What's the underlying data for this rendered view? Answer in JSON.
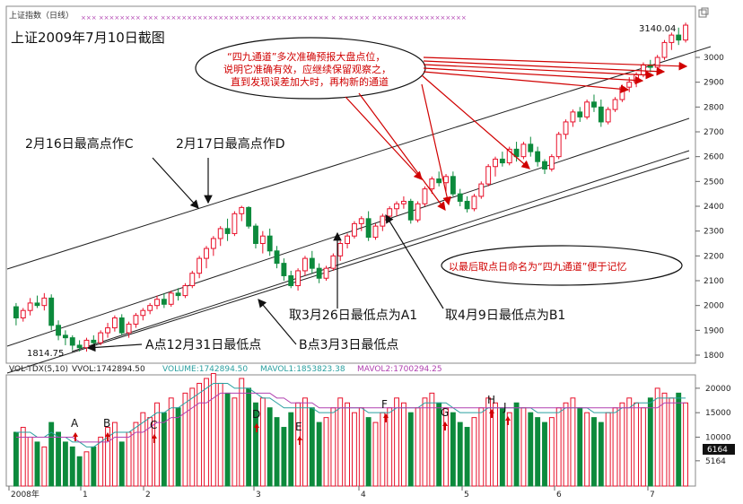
{
  "header": {
    "panel_label": "上证指数（日线）",
    "title": "上证2009年7月10日截图",
    "minimize_icon": "window-restore-icon"
  },
  "price_axis": {
    "ticks": [
      1800,
      1900,
      2000,
      2100,
      2200,
      2300,
      2400,
      2500,
      2600,
      2700,
      2800,
      2900,
      3000
    ],
    "high_label": "3140.04",
    "low_label": "1814.75"
  },
  "annotations": {
    "note_box": [
      "“四九通道”多次准确预报大盘点位，",
      "说明它准确有效，应继续保留观察之，",
      "直到发现误差加大时，再构新的通道"
    ],
    "label_c": "2月16日最高点作C",
    "label_d": "2月17日最高点作D",
    "label_a": "A点12月31日最低点",
    "label_b": "B点3月3日最低点",
    "label_a1": "取3月26日最低点为A1",
    "label_b1": "取4月9日最低点为B1",
    "name_note": "以最后取点日命名为“四九通道”便于记忆"
  },
  "volume_header": {
    "indicator": "VOL-TDX(5,10)",
    "vvol": "VVOL:1742894.50",
    "volume": "VOLUME:1742894.50",
    "mavol1": "MAVOL1:1853823.38",
    "mavol2": "MAVOL2:1700294.25"
  },
  "volume_axis": {
    "ticks": [
      "20000",
      "15000",
      "10000",
      "5164"
    ],
    "current_label": "6164"
  },
  "volume_markers": [
    "A",
    "B",
    "C",
    "D",
    "E",
    "F",
    "G",
    "H",
    "J"
  ],
  "time_axis": [
    "2008年",
    "1",
    "2",
    "3",
    "4",
    "5",
    "6",
    "7"
  ],
  "colors": {
    "up": "#e8102a",
    "down": "#0c8a3c",
    "channel": "#222222",
    "ma1": "#2aa0a0",
    "ma2": "#b040b0",
    "note_text": "#d00000",
    "arrow": "#d00000"
  },
  "chart_data": {
    "type": "candlestick",
    "title": "上证2009年7月10日截图",
    "ylim": [
      1760,
      3200
    ],
    "channel_lines_note": "四九通道",
    "key_points": {
      "high": 3140.04,
      "low": 1814.75
    },
    "candles": [
      {
        "o": 1995,
        "h": 2010,
        "l": 1920,
        "c": 1950
      },
      {
        "o": 1950,
        "h": 1990,
        "l": 1935,
        "c": 1980
      },
      {
        "o": 1980,
        "h": 2030,
        "l": 1960,
        "c": 2010
      },
      {
        "o": 2010,
        "h": 2040,
        "l": 1990,
        "c": 2000
      },
      {
        "o": 2000,
        "h": 2050,
        "l": 1980,
        "c": 2030
      },
      {
        "o": 2030,
        "h": 2045,
        "l": 1900,
        "c": 1920
      },
      {
        "o": 1920,
        "h": 1940,
        "l": 1860,
        "c": 1880
      },
      {
        "o": 1880,
        "h": 1900,
        "l": 1840,
        "c": 1870
      },
      {
        "o": 1870,
        "h": 1880,
        "l": 1820,
        "c": 1840
      },
      {
        "o": 1840,
        "h": 1860,
        "l": 1815,
        "c": 1830
      },
      {
        "o": 1830,
        "h": 1870,
        "l": 1814,
        "c": 1860
      },
      {
        "o": 1860,
        "h": 1880,
        "l": 1830,
        "c": 1850
      },
      {
        "o": 1850,
        "h": 1900,
        "l": 1840,
        "c": 1890
      },
      {
        "o": 1890,
        "h": 1930,
        "l": 1870,
        "c": 1910
      },
      {
        "o": 1910,
        "h": 1960,
        "l": 1895,
        "c": 1950
      },
      {
        "o": 1950,
        "h": 1965,
        "l": 1880,
        "c": 1890
      },
      {
        "o": 1890,
        "h": 1935,
        "l": 1870,
        "c": 1925
      },
      {
        "o": 1925,
        "h": 1970,
        "l": 1910,
        "c": 1960
      },
      {
        "o": 1960,
        "h": 1990,
        "l": 1940,
        "c": 1980
      },
      {
        "o": 1980,
        "h": 2010,
        "l": 1965,
        "c": 2000
      },
      {
        "o": 2000,
        "h": 2040,
        "l": 1985,
        "c": 2025
      },
      {
        "o": 2025,
        "h": 2050,
        "l": 1990,
        "c": 2005
      },
      {
        "o": 2005,
        "h": 2060,
        "l": 1995,
        "c": 2050
      },
      {
        "o": 2050,
        "h": 2070,
        "l": 2020,
        "c": 2040
      },
      {
        "o": 2040,
        "h": 2090,
        "l": 2030,
        "c": 2080
      },
      {
        "o": 2080,
        "h": 2140,
        "l": 2070,
        "c": 2130
      },
      {
        "o": 2130,
        "h": 2200,
        "l": 2110,
        "c": 2190
      },
      {
        "o": 2190,
        "h": 2240,
        "l": 2150,
        "c": 2230
      },
      {
        "o": 2230,
        "h": 2280,
        "l": 2200,
        "c": 2270
      },
      {
        "o": 2270,
        "h": 2320,
        "l": 2240,
        "c": 2310
      },
      {
        "o": 2310,
        "h": 2350,
        "l": 2260,
        "c": 2290
      },
      {
        "o": 2290,
        "h": 2380,
        "l": 2280,
        "c": 2370
      },
      {
        "o": 2370,
        "h": 2402,
        "l": 2340,
        "c": 2395
      },
      {
        "o": 2395,
        "h": 2400,
        "l": 2310,
        "c": 2320
      },
      {
        "o": 2320,
        "h": 2330,
        "l": 2230,
        "c": 2250
      },
      {
        "o": 2250,
        "h": 2300,
        "l": 2210,
        "c": 2280
      },
      {
        "o": 2280,
        "h": 2310,
        "l": 2200,
        "c": 2220
      },
      {
        "o": 2220,
        "h": 2240,
        "l": 2150,
        "c": 2170
      },
      {
        "o": 2170,
        "h": 2190,
        "l": 2100,
        "c": 2120
      },
      {
        "o": 2120,
        "h": 2140,
        "l": 2070,
        "c": 2080
      },
      {
        "o": 2080,
        "h": 2150,
        "l": 2060,
        "c": 2140
      },
      {
        "o": 2140,
        "h": 2200,
        "l": 2120,
        "c": 2190
      },
      {
        "o": 2190,
        "h": 2220,
        "l": 2130,
        "c": 2150
      },
      {
        "o": 2150,
        "h": 2170,
        "l": 2090,
        "c": 2110
      },
      {
        "o": 2110,
        "h": 2160,
        "l": 2100,
        "c": 2150
      },
      {
        "o": 2150,
        "h": 2210,
        "l": 2140,
        "c": 2200
      },
      {
        "o": 2200,
        "h": 2260,
        "l": 2180,
        "c": 2250
      },
      {
        "o": 2250,
        "h": 2290,
        "l": 2230,
        "c": 2280
      },
      {
        "o": 2280,
        "h": 2340,
        "l": 2270,
        "c": 2330
      },
      {
        "o": 2330,
        "h": 2360,
        "l": 2300,
        "c": 2350
      },
      {
        "o": 2350,
        "h": 2380,
        "l": 2260,
        "c": 2275
      },
      {
        "o": 2275,
        "h": 2330,
        "l": 2265,
        "c": 2320
      },
      {
        "o": 2320,
        "h": 2370,
        "l": 2300,
        "c": 2360
      },
      {
        "o": 2360,
        "h": 2400,
        "l": 2340,
        "c": 2390
      },
      {
        "o": 2390,
        "h": 2420,
        "l": 2360,
        "c": 2410
      },
      {
        "o": 2410,
        "h": 2440,
        "l": 2390,
        "c": 2420
      },
      {
        "o": 2420,
        "h": 2430,
        "l": 2330,
        "c": 2345
      },
      {
        "o": 2345,
        "h": 2420,
        "l": 2335,
        "c": 2410
      },
      {
        "o": 2410,
        "h": 2480,
        "l": 2400,
        "c": 2470
      },
      {
        "o": 2470,
        "h": 2520,
        "l": 2450,
        "c": 2510
      },
      {
        "o": 2510,
        "h": 2540,
        "l": 2480,
        "c": 2495
      },
      {
        "o": 2495,
        "h": 2530,
        "l": 2460,
        "c": 2520
      },
      {
        "o": 2520,
        "h": 2540,
        "l": 2440,
        "c": 2450
      },
      {
        "o": 2450,
        "h": 2470,
        "l": 2400,
        "c": 2420
      },
      {
        "o": 2420,
        "h": 2440,
        "l": 2375,
        "c": 2390
      },
      {
        "o": 2390,
        "h": 2450,
        "l": 2380,
        "c": 2440
      },
      {
        "o": 2440,
        "h": 2500,
        "l": 2430,
        "c": 2490
      },
      {
        "o": 2490,
        "h": 2570,
        "l": 2480,
        "c": 2560
      },
      {
        "o": 2560,
        "h": 2600,
        "l": 2520,
        "c": 2590
      },
      {
        "o": 2590,
        "h": 2620,
        "l": 2560,
        "c": 2575
      },
      {
        "o": 2575,
        "h": 2640,
        "l": 2565,
        "c": 2630
      },
      {
        "o": 2630,
        "h": 2660,
        "l": 2580,
        "c": 2600
      },
      {
        "o": 2600,
        "h": 2660,
        "l": 2590,
        "c": 2650
      },
      {
        "o": 2650,
        "h": 2680,
        "l": 2600,
        "c": 2620
      },
      {
        "o": 2620,
        "h": 2640,
        "l": 2560,
        "c": 2580
      },
      {
        "o": 2580,
        "h": 2590,
        "l": 2530,
        "c": 2550
      },
      {
        "o": 2550,
        "h": 2610,
        "l": 2540,
        "c": 2600
      },
      {
        "o": 2600,
        "h": 2700,
        "l": 2590,
        "c": 2690
      },
      {
        "o": 2690,
        "h": 2750,
        "l": 2670,
        "c": 2740
      },
      {
        "o": 2740,
        "h": 2790,
        "l": 2720,
        "c": 2780
      },
      {
        "o": 2780,
        "h": 2800,
        "l": 2740,
        "c": 2760
      },
      {
        "o": 2760,
        "h": 2830,
        "l": 2750,
        "c": 2820
      },
      {
        "o": 2820,
        "h": 2850,
        "l": 2780,
        "c": 2800
      },
      {
        "o": 2800,
        "h": 2830,
        "l": 2720,
        "c": 2740
      },
      {
        "o": 2740,
        "h": 2800,
        "l": 2730,
        "c": 2790
      },
      {
        "o": 2790,
        "h": 2840,
        "l": 2780,
        "c": 2830
      },
      {
        "o": 2830,
        "h": 2890,
        "l": 2820,
        "c": 2880
      },
      {
        "o": 2880,
        "h": 2920,
        "l": 2860,
        "c": 2900
      },
      {
        "o": 2900,
        "h": 2940,
        "l": 2880,
        "c": 2930
      },
      {
        "o": 2930,
        "h": 2980,
        "l": 2920,
        "c": 2970
      },
      {
        "o": 2970,
        "h": 2990,
        "l": 2940,
        "c": 2960
      },
      {
        "o": 2960,
        "h": 3010,
        "l": 2950,
        "c": 3000
      },
      {
        "o": 3000,
        "h": 3070,
        "l": 2990,
        "c": 3060
      },
      {
        "o": 3060,
        "h": 3100,
        "l": 3030,
        "c": 3090
      },
      {
        "o": 3090,
        "h": 3120,
        "l": 3050,
        "c": 3070
      },
      {
        "o": 3070,
        "h": 3140,
        "l": 3060,
        "c": 3130
      }
    ],
    "volume": [
      11,
      12,
      10,
      9,
      8,
      13,
      11,
      9,
      8,
      6,
      7,
      8,
      10,
      12,
      13,
      9,
      11,
      13,
      15,
      14,
      17,
      15,
      18,
      16,
      19,
      20,
      21,
      22,
      23,
      21,
      19,
      18,
      22,
      20,
      17,
      18,
      16,
      14,
      12,
      15,
      17,
      18,
      16,
      13,
      14,
      16,
      18,
      17,
      15,
      16,
      14,
      13,
      15,
      16,
      18,
      17,
      15,
      16,
      18,
      19,
      17,
      16,
      15,
      13,
      12,
      14,
      16,
      18,
      17,
      16,
      15,
      17,
      16,
      15,
      14,
      13,
      14,
      16,
      17,
      18,
      16,
      15,
      14,
      13,
      15,
      16,
      17,
      18,
      17,
      16,
      18,
      20,
      19,
      18,
      19,
      17
    ],
    "mavol1": [
      11,
      11,
      11,
      10,
      10,
      11,
      10,
      10,
      9,
      9,
      8,
      8,
      9,
      10,
      11,
      11,
      11,
      12,
      13,
      14,
      15,
      15,
      16,
      16,
      17,
      18,
      19,
      20,
      21,
      21,
      21,
      20,
      20,
      20,
      19,
      18,
      18,
      17,
      16,
      16,
      16,
      16,
      16,
      15,
      15,
      15,
      16,
      16,
      16,
      16,
      15,
      15,
      15,
      15,
      16,
      16,
      16,
      16,
      17,
      17,
      17,
      17,
      16,
      15,
      15,
      15,
      15,
      16,
      16,
      16,
      16,
      16,
      16,
      16,
      15,
      15,
      15,
      15,
      16,
      16,
      16,
      16,
      15,
      15,
      15,
      15,
      16,
      16,
      17,
      17,
      17,
      18,
      18,
      18,
      18,
      18
    ],
    "mavol2": [
      10,
      10,
      10,
      10,
      10,
      10,
      10,
      10,
      10,
      9,
      9,
      9,
      9,
      9,
      10,
      10,
      10,
      11,
      11,
      12,
      13,
      13,
      14,
      14,
      15,
      16,
      17,
      17,
      18,
      19,
      19,
      19,
      19,
      19,
      19,
      19,
      19,
      18,
      18,
      17,
      17,
      17,
      17,
      16,
      16,
      16,
      16,
      16,
      16,
      16,
      16,
      16,
      16,
      16,
      16,
      16,
      16,
      16,
      16,
      16,
      16,
      16,
      16,
      16,
      16,
      16,
      16,
      16,
      16,
      16,
      16,
      16,
      16,
      16,
      16,
      16,
      16,
      16,
      16,
      16,
      16,
      16,
      16,
      16,
      16,
      16,
      16,
      16,
      16,
      16,
      16,
      16,
      17,
      17,
      17,
      17
    ]
  }
}
